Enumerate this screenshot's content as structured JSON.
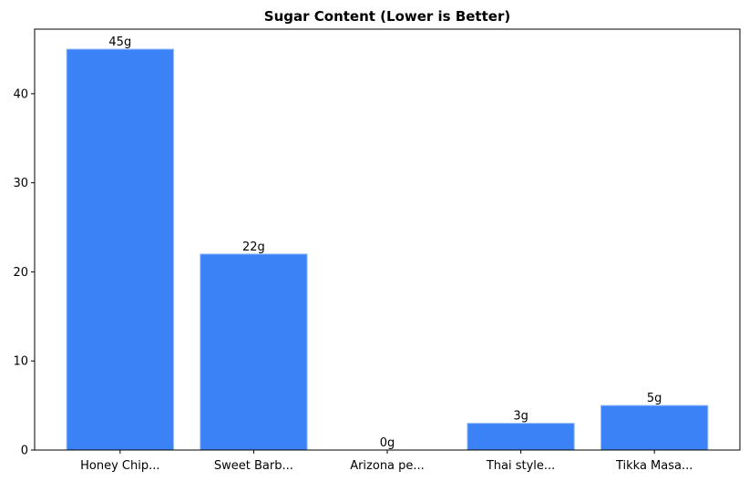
{
  "chart_data": {
    "type": "bar",
    "title": "Sugar Content (Lower is Better)",
    "categories": [
      "Honey Chip...",
      "Sweet Barb...",
      "Arizona pe...",
      "Thai style...",
      "Tikka Masa..."
    ],
    "values": [
      45,
      22,
      0,
      3,
      5
    ],
    "value_labels": [
      "45g",
      "22g",
      "0g",
      "3g",
      "5g"
    ],
    "color": "#3b82f6",
    "ylim": [
      0,
      47.25
    ],
    "yticks": [
      0,
      10,
      20,
      30,
      40
    ]
  }
}
